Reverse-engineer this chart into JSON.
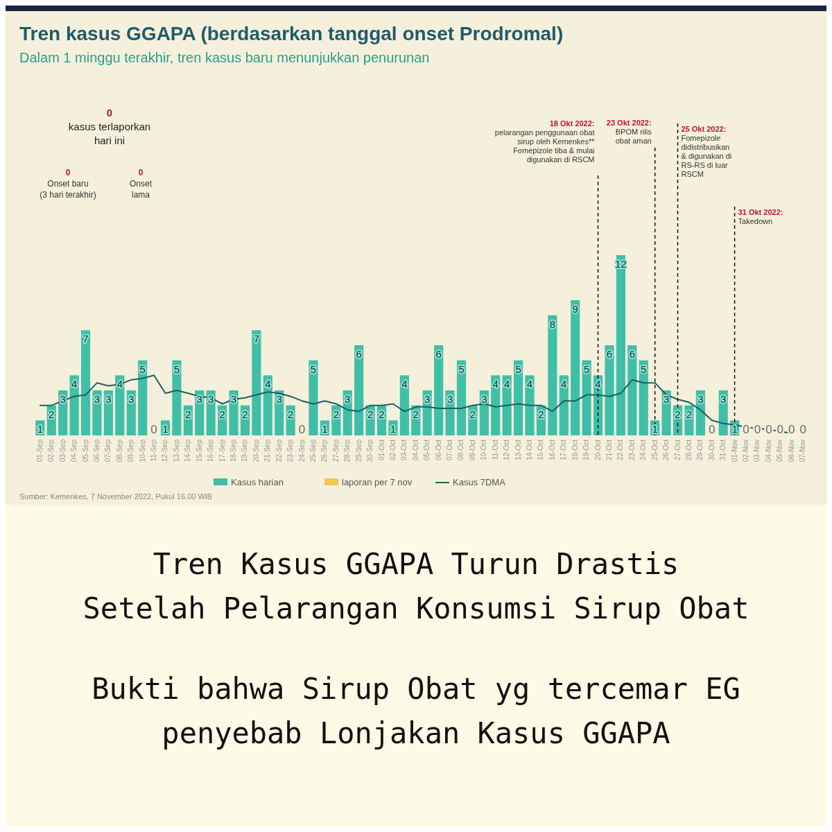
{
  "chart_data": {
    "type": "bar",
    "title": "Tren kasus GGAPA (berdasarkan tanggal onset Prodromal)",
    "subtitle": "Dalam 1 minggu terakhir, tren kasus baru menunjukkan penurunan",
    "categories": [
      "01-Sep",
      "02-Sep",
      "03-Sep",
      "04-Sep",
      "05-Sep",
      "06-Sep",
      "07-Sep",
      "08-Sep",
      "09-Sep",
      "10-Sep",
      "11-Sep",
      "12-Sep",
      "13-Sep",
      "14-Sep",
      "15-Sep",
      "16-Sep",
      "17-Sep",
      "18-Sep",
      "19-Sep",
      "20-Sep",
      "21-Sep",
      "22-Sep",
      "23-Sep",
      "24-Sep",
      "25-Sep",
      "26-Sep",
      "27-Sep",
      "28-Sep",
      "29-Sep",
      "30-Sep",
      "01-Oct",
      "02-Oct",
      "03-Oct",
      "04-Oct",
      "05-Oct",
      "06-Oct",
      "07-Oct",
      "08-Oct",
      "09-Oct",
      "10-Oct",
      "11-Oct",
      "12-Oct",
      "13-Oct",
      "14-Oct",
      "15-Oct",
      "16-Oct",
      "17-Oct",
      "18-Oct",
      "19-Oct",
      "20-Oct",
      "21-Oct",
      "22-Oct",
      "23-Oct",
      "24-Oct",
      "25-Oct",
      "26-Oct",
      "27-Oct",
      "28-Oct",
      "29-Oct",
      "30-Oct",
      "31-Oct",
      "01-Nov",
      "02-Nov",
      "03-Nov",
      "04-Nov",
      "05-Nov",
      "06-Nov",
      "07-Nov"
    ],
    "series": [
      {
        "name": "Kasus harian",
        "color": "#3fbfa8",
        "values": [
          1,
          2,
          3,
          4,
          7,
          3,
          3,
          4,
          3,
          5,
          0,
          1,
          5,
          2,
          3,
          3,
          2,
          3,
          2,
          7,
          4,
          3,
          2,
          0,
          5,
          1,
          2,
          3,
          6,
          2,
          2,
          1,
          4,
          2,
          3,
          6,
          3,
          5,
          2,
          3,
          4,
          4,
          5,
          4,
          2,
          8,
          4,
          9,
          5,
          4,
          6,
          12,
          6,
          5,
          1,
          3,
          2,
          2,
          3,
          0,
          3,
          1,
          0,
          0,
          0,
          0,
          0,
          0
        ],
        "value_labels": [
          "1",
          "2",
          "3",
          "4",
          "7",
          "3",
          "3",
          "4",
          "3",
          "5",
          "0",
          "1",
          "5",
          "2",
          "3",
          "3",
          "2",
          "3",
          "2",
          "7",
          "4",
          "3",
          "2",
          "0",
          "5",
          "1",
          "2",
          "3",
          "6",
          "2",
          "2",
          "1",
          "4",
          "2",
          "3",
          "6",
          "3",
          "5",
          "2",
          "3",
          "4",
          "4",
          "5",
          "4",
          "2",
          "8",
          "4",
          "9",
          "5",
          "4",
          "6",
          "12",
          "6",
          "5",
          "1",
          "3",
          "2",
          "2",
          "3",
          "0",
          "3",
          "1",
          "0",
          "0",
          "0",
          "0",
          "0",
          "0"
        ]
      },
      {
        "name": "laporan per 7 nov",
        "color": "#f2c94c",
        "values": [
          null,
          null,
          null,
          null,
          null,
          null,
          null,
          null,
          null,
          null,
          null,
          null,
          null,
          null,
          null,
          null,
          null,
          null,
          null,
          null,
          null,
          null,
          null,
          null,
          null,
          null,
          null,
          null,
          null,
          null,
          null,
          null,
          null,
          null,
          null,
          null,
          null,
          null,
          null,
          null,
          null,
          null,
          null,
          null,
          null,
          null,
          null,
          null,
          null,
          null,
          null,
          null,
          null,
          null,
          null,
          null,
          null,
          null,
          null,
          null,
          null,
          null,
          null,
          null,
          null,
          null,
          null,
          null
        ]
      },
      {
        "name": "Kasus 7DMA",
        "type": "line",
        "color": "#1d5f63",
        "values": [
          2.0,
          2.0,
          2.3,
          2.6,
          2.7,
          3.5,
          3.3,
          3.4,
          3.7,
          3.8,
          4.0,
          2.8,
          3.0,
          2.8,
          2.6,
          2.5,
          2.1,
          2.4,
          2.5,
          2.7,
          2.9,
          2.8,
          2.6,
          2.3,
          2.1,
          2.3,
          2.1,
          1.7,
          1.6,
          2.0,
          2.0,
          2.1,
          1.6,
          1.9,
          1.9,
          1.8,
          1.8,
          1.8,
          2.0,
          2.1,
          1.9,
          2.0,
          2.1,
          2.0,
          2.0,
          1.6,
          2.3,
          2.3,
          2.7,
          2.7,
          2.6,
          2.8,
          3.7,
          3.5,
          3.5,
          2.7,
          2.4,
          2.2,
          1.7,
          1.0,
          0.8,
          0.7,
          0.55,
          0.45,
          0.4,
          0.25,
          0.15,
          null
        ]
      }
    ],
    "legend": "bottom",
    "grid": false,
    "ref_lines": [
      {
        "axis": "x",
        "value": "20-Oct",
        "line_style": "dashed",
        "color": "#111111",
        "label": "18 Okt 2022:\npelarangan penggunaan obat\nsirup oleh Kemenkes**\n\nFomepizole tiba & mulai\ndigunakan di RSCM"
      },
      {
        "axis": "x",
        "value": "25-Oct",
        "line_style": "dashed",
        "color": "#111111",
        "label": "23 Okt 2022:\nBPOM rilis\nobat aman"
      },
      {
        "axis": "x",
        "value": "27-Oct",
        "line_style": "dashed",
        "color": "#111111",
        "label": "25 Okt 2022:\nFomepizole\ndidistribusikan\n& digunakan di\nRS-RS di luar\nRSCM"
      },
      {
        "axis": "x",
        "value": "01-Nov",
        "line_style": "dashed",
        "color": "#111111",
        "label": "31 Okt 2022:\nTakedown"
      }
    ],
    "annotations": [
      "0\nkasus terlaporkan\nhari ini",
      "0\nOnset baru\n(3 hari terakhir)",
      "0\nOnset\nlama",
      "Sumber: Kemenkes, 7 November 2022, Pukul 16.00 WIB",
      "Tren Kasus GGAPA Turun Drastis\nSetelah Pelarangan Konsumsi Sirup Obat",
      "Bukti bahwa Sirup Obat yg tercemar EG\npenyebab Lonjakan Kasus GGAPA"
    ]
  }
}
